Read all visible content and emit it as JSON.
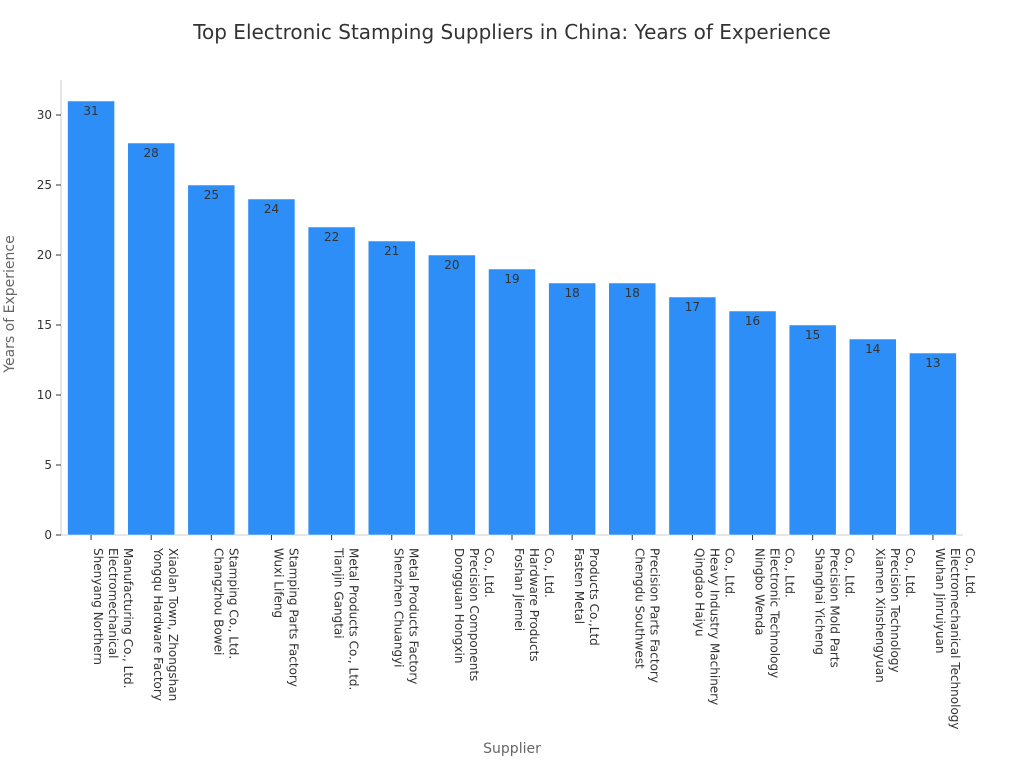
{
  "chart_data": {
    "type": "bar",
    "title": "Top Electronic Stamping Suppliers in China: Years of Experience",
    "xlabel": "Supplier",
    "ylabel": "Years of Experience",
    "ylim": [
      0,
      32.5
    ],
    "yticks": [
      0,
      5,
      10,
      15,
      20,
      25,
      30
    ],
    "grid": false,
    "bar_color": "#2e8ef7",
    "categories": [
      [
        "Shenyang Northern",
        "Electromechanical",
        "Manufacturing Co., Ltd."
      ],
      [
        "Yongqu Hardware Factory",
        "Xiaolan Town, Zhongshan"
      ],
      [
        "Changzhou Bowei",
        "Stamping Co., Ltd."
      ],
      [
        "Wuxi Lifeng",
        "Stamping Parts Factory"
      ],
      [
        "Tianjin Gangtai",
        "Metal Products Co., Ltd."
      ],
      [
        "Shenzhen Chuangyi",
        "Metal Products Factory"
      ],
      [
        "Dongguan Hongxin",
        "Precision Components",
        "Co., Ltd."
      ],
      [
        "Foshan Jiemei",
        "Hardware Products",
        "Co., Ltd."
      ],
      [
        "Fasten Metal",
        "Products Co.,Ltd"
      ],
      [
        "Chengdu Southwest",
        "Precision Parts Factory"
      ],
      [
        "Qingdao Haiyu",
        "Heavy Industry Machinery",
        "Co., Ltd."
      ],
      [
        "Ningbo Wenda",
        "Electronic Technology",
        "Co., Ltd."
      ],
      [
        "Shanghai Yicheng",
        "Precision Mold Parts",
        "Co., Ltd."
      ],
      [
        "Xiamen Xinshengyuan",
        "Precision Technology",
        "Co., Ltd."
      ],
      [
        "Wuhan Jinruiyuan",
        "Electromechanical Technology",
        "Co., Ltd."
      ]
    ],
    "values": [
      31,
      28,
      25,
      24,
      22,
      21,
      20,
      19,
      18,
      18,
      17,
      16,
      15,
      14,
      13
    ]
  }
}
